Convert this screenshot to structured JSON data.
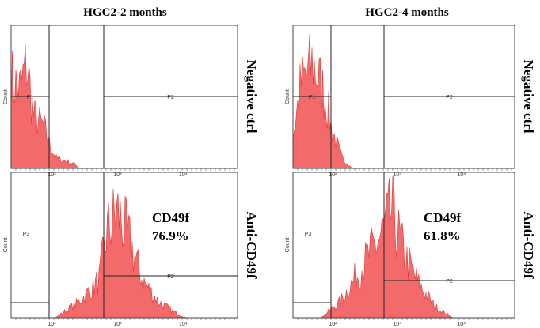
{
  "figure": {
    "columns": [
      "HGC2-2 months",
      "HGC2-4 months"
    ],
    "rows": [
      "Negative ctrl",
      "Anti-CD49f"
    ],
    "y_axis_label": "Count",
    "gate_labels": {
      "p1": "P1",
      "p2": "P2",
      "p3": "P3"
    },
    "x_tick_labels": [
      "10²",
      "10³",
      "10⁴"
    ],
    "annotations": [
      {
        "marker": "CD49f",
        "percent": "76.9%"
      },
      {
        "marker": "CD49f",
        "percent": "61.8%"
      }
    ]
  }
}
